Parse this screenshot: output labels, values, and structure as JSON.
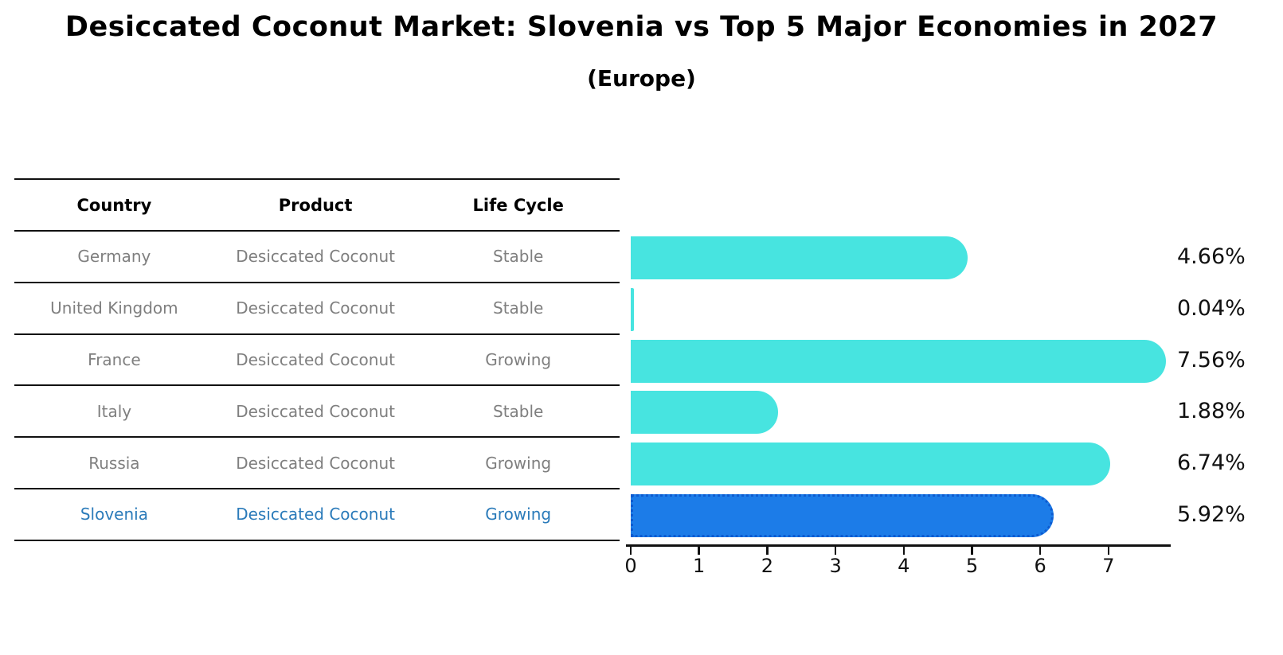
{
  "title": "Desiccated Coconut Market: Slovenia vs Top 5 Major Economies in 2027",
  "subtitle": "(Europe)",
  "table": {
    "headers": [
      "Country",
      "Product",
      "Life Cycle"
    ]
  },
  "chart_data": {
    "type": "bar",
    "orientation": "horizontal",
    "title": "Desiccated Coconut Market: Slovenia vs Top 5 Major Economies in 2027",
    "subtitle": "(Europe)",
    "categories": [
      "Germany",
      "United Kingdom",
      "France",
      "Italy",
      "Russia",
      "Slovenia"
    ],
    "values": [
      4.66,
      0.04,
      7.56,
      1.88,
      6.74,
      5.92
    ],
    "value_labels": [
      "4.66%",
      "0.04%",
      "7.56%",
      "1.88%",
      "6.74%",
      "5.92%"
    ],
    "rows": [
      {
        "country": "Germany",
        "product": "Desiccated Coconut",
        "life_cycle": "Stable",
        "value": 4.66,
        "value_label": "4.66%",
        "highlighted": false
      },
      {
        "country": "United Kingdom",
        "product": "Desiccated Coconut",
        "life_cycle": "Stable",
        "value": 0.04,
        "value_label": "0.04%",
        "highlighted": false
      },
      {
        "country": "France",
        "product": "Desiccated Coconut",
        "life_cycle": "Growing",
        "value": 7.56,
        "value_label": "7.56%",
        "highlighted": false
      },
      {
        "country": "Italy",
        "product": "Desiccated Coconut",
        "life_cycle": "Stable",
        "value": 1.88,
        "value_label": "1.88%",
        "highlighted": false
      },
      {
        "country": "Russia",
        "product": "Desiccated Coconut",
        "life_cycle": "Growing",
        "value": 6.74,
        "value_label": "6.74%",
        "highlighted": false
      },
      {
        "country": "Slovenia",
        "product": "Desiccated Coconut",
        "life_cycle": "Growing",
        "value": 5.92,
        "value_label": "5.92%",
        "highlighted": true
      }
    ],
    "xlim": [
      0,
      7.95
    ],
    "xticks": [
      0,
      1,
      2,
      3,
      4,
      5,
      6,
      7
    ],
    "grid": false,
    "legend": false,
    "colors": {
      "bar": "#47E4E0",
      "highlight_bar": "#1C7CE8",
      "highlight_outline": "#0D5BD0",
      "highlight_text": "#2B7BBA",
      "row_text": "#7F7F7F",
      "header_text": "#000000",
      "axis": "#111111",
      "value_text": "#111111"
    }
  }
}
